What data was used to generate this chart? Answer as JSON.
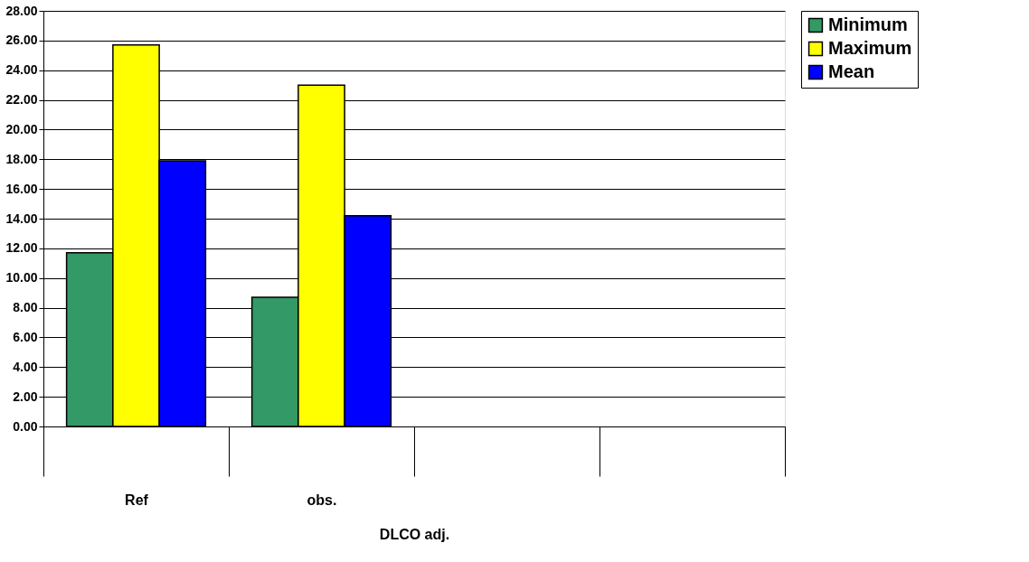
{
  "chart_data": {
    "type": "bar",
    "categories": [
      "Ref",
      "obs.",
      null,
      null
    ],
    "xlabel": "DLCO adj.",
    "series": [
      {
        "name": "Minimum",
        "color": "#339966",
        "values": [
          11.7,
          8.7,
          null,
          null
        ]
      },
      {
        "name": "Maximum",
        "color": "#ffff00",
        "values": [
          25.7,
          23.0,
          null,
          null
        ]
      },
      {
        "name": "Mean",
        "color": "#0000ff",
        "values": [
          17.9,
          14.2,
          null,
          null
        ]
      }
    ],
    "ylim": [
      0,
      28
    ],
    "yticks": [
      {
        "value": 0,
        "label": "0.00"
      },
      {
        "value": 2,
        "label": "2.00"
      },
      {
        "value": 4,
        "label": "4.00"
      },
      {
        "value": 6,
        "label": "6.00"
      },
      {
        "value": 8,
        "label": "8.00"
      },
      {
        "value": 10,
        "label": "10.00"
      },
      {
        "value": 12,
        "label": "12.00"
      },
      {
        "value": 14,
        "label": "14.00"
      },
      {
        "value": 16,
        "label": "16.00"
      },
      {
        "value": 18,
        "label": "18.00"
      },
      {
        "value": 20,
        "label": "20.00"
      },
      {
        "value": 22,
        "label": "22.00"
      },
      {
        "value": 24,
        "label": "24.00"
      },
      {
        "value": 26,
        "label": "26.00"
      },
      {
        "value": 28,
        "label": "28.00"
      }
    ],
    "grid": "y",
    "legend": "right"
  }
}
